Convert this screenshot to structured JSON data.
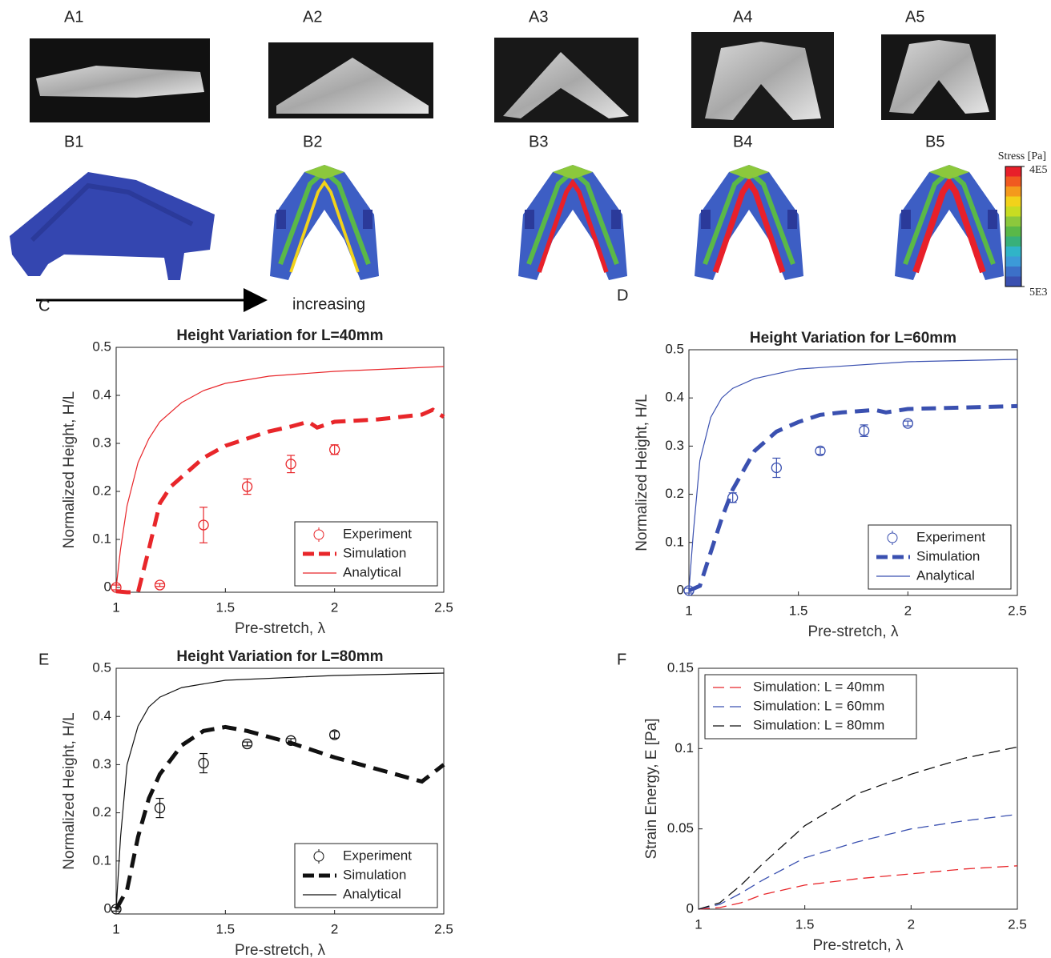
{
  "figure": {
    "photo_labels": [
      "A1",
      "A2",
      "A3",
      "A4",
      "A5"
    ],
    "sim_labels": [
      "B1",
      "B2",
      "B3",
      "B4",
      "B5"
    ],
    "arrow_label": "increasing",
    "colorbar": {
      "title": "Stress [Pa]",
      "ticks": [
        {
          "value": 5000,
          "label": "5E3"
        },
        {
          "value": 400000,
          "label": "4E5"
        }
      ],
      "colors": [
        "#e8202a",
        "#f05a20",
        "#f49a1c",
        "#f2d21a",
        "#c8dc22",
        "#8cc83c",
        "#5ab848",
        "#38b07a",
        "#30b4c8",
        "#3c9ad8",
        "#3c70c8",
        "#3a50b0"
      ]
    }
  },
  "chart_data": [
    {
      "type": "line",
      "panel": "C",
      "title": "Height Variation for L=40mm",
      "xlabel": "Pre-stretch, λ",
      "ylabel": "Normalized Height, H/L",
      "xlim": [
        1,
        2.5
      ],
      "ylim": [
        -0.01,
        0.5
      ],
      "xticks": [
        1,
        1.5,
        2,
        2.5
      ],
      "yticks": [
        0,
        0.1,
        0.2,
        0.3,
        0.4,
        0.5
      ],
      "legend": "lower right",
      "series": [
        {
          "name": "Experiment",
          "color": "#e8262a",
          "style": "errorbar",
          "x": [
            1,
            1.2,
            1.4,
            1.6,
            1.8,
            2
          ],
          "values": [
            0,
            0.005,
            0.13,
            0.21,
            0.257,
            0.287
          ],
          "errors": [
            0.005,
            0.003,
            0.037,
            0.016,
            0.018,
            0.01
          ]
        },
        {
          "name": "Simulation",
          "color": "#e8262a",
          "style": "dashed",
          "x": [
            1,
            1.05,
            1.1,
            1.15,
            1.2,
            1.25,
            1.3,
            1.4,
            1.5,
            1.6,
            1.7,
            1.8,
            1.88,
            1.92,
            2,
            2.2,
            2.4,
            2.45,
            2.5
          ],
          "values": [
            -0.008,
            -0.01,
            -0.01,
            0.08,
            0.175,
            0.21,
            0.23,
            0.27,
            0.295,
            0.31,
            0.325,
            0.335,
            0.345,
            0.333,
            0.345,
            0.35,
            0.36,
            0.37,
            0.355
          ]
        },
        {
          "name": "Analytical",
          "color": "#e8262a",
          "style": "solid",
          "x": [
            1,
            1.02,
            1.05,
            1.1,
            1.15,
            1.2,
            1.3,
            1.4,
            1.5,
            1.7,
            2,
            2.5
          ],
          "values": [
            0,
            0.08,
            0.17,
            0.26,
            0.31,
            0.345,
            0.385,
            0.41,
            0.425,
            0.44,
            0.45,
            0.46
          ]
        }
      ]
    },
    {
      "type": "line",
      "panel": "D",
      "title": "Height Variation for L=60mm",
      "xlabel": "Pre-stretch, λ",
      "ylabel": "Normalized Height, H/L",
      "xlim": [
        1,
        2.5
      ],
      "ylim": [
        -0.01,
        0.5
      ],
      "xticks": [
        1,
        1.5,
        2,
        2.5
      ],
      "yticks": [
        0,
        0.1,
        0.2,
        0.3,
        0.4,
        0.5
      ],
      "legend": "lower right",
      "series": [
        {
          "name": "Experiment",
          "color": "#3a50b0",
          "style": "errorbar",
          "x": [
            1,
            1.2,
            1.4,
            1.6,
            1.8,
            2
          ],
          "values": [
            0,
            0.193,
            0.255,
            0.29,
            0.332,
            0.347
          ],
          "errors": [
            0.005,
            0.01,
            0.02,
            0.007,
            0.012,
            0.005
          ]
        },
        {
          "name": "Simulation",
          "color": "#3a50b0",
          "style": "dashed",
          "x": [
            1,
            1.05,
            1.1,
            1.15,
            1.2,
            1.3,
            1.4,
            1.5,
            1.6,
            1.7,
            1.85,
            1.9,
            2,
            2.5
          ],
          "values": [
            0,
            0.01,
            0.08,
            0.15,
            0.21,
            0.29,
            0.33,
            0.35,
            0.365,
            0.37,
            0.375,
            0.37,
            0.377,
            0.383
          ]
        },
        {
          "name": "Analytical",
          "color": "#3a50b0",
          "style": "solid",
          "x": [
            1,
            1.02,
            1.05,
            1.1,
            1.15,
            1.2,
            1.3,
            1.5,
            2,
            2.5
          ],
          "values": [
            0,
            0.12,
            0.27,
            0.36,
            0.4,
            0.42,
            0.44,
            0.46,
            0.475,
            0.48
          ]
        }
      ]
    },
    {
      "type": "line",
      "panel": "E",
      "title": "Height Variation for L=80mm",
      "xlabel": "Pre-stretch, λ",
      "ylabel": "Normalized Height, H/L",
      "xlim": [
        1,
        2.5
      ],
      "ylim": [
        -0.01,
        0.5
      ],
      "xticks": [
        1,
        1.5,
        2,
        2.5
      ],
      "yticks": [
        0,
        0.1,
        0.2,
        0.3,
        0.4,
        0.5
      ],
      "legend": "lower right",
      "series": [
        {
          "name": "Experiment",
          "color": "#111111",
          "style": "errorbar",
          "x": [
            1,
            1.2,
            1.4,
            1.6,
            1.8,
            2
          ],
          "values": [
            0,
            0.21,
            0.303,
            0.343,
            0.35,
            0.362
          ],
          "errors": [
            0.004,
            0.02,
            0.02,
            0.004,
            0.004,
            0.007
          ]
        },
        {
          "name": "Simulation",
          "color": "#111111",
          "style": "dashed",
          "x": [
            1,
            1.05,
            1.1,
            1.15,
            1.2,
            1.3,
            1.4,
            1.5,
            1.6,
            1.8,
            2,
            2.2,
            2.4,
            2.5
          ],
          "values": [
            0,
            0.04,
            0.15,
            0.23,
            0.28,
            0.34,
            0.37,
            0.378,
            0.37,
            0.345,
            0.315,
            0.29,
            0.265,
            0.3
          ]
        },
        {
          "name": "Analytical",
          "color": "#111111",
          "style": "solid",
          "x": [
            1,
            1.02,
            1.05,
            1.1,
            1.15,
            1.2,
            1.3,
            1.5,
            2,
            2.5
          ],
          "values": [
            0,
            0.15,
            0.3,
            0.38,
            0.42,
            0.44,
            0.46,
            0.475,
            0.485,
            0.49
          ]
        }
      ]
    },
    {
      "type": "line",
      "panel": "F",
      "xlabel": "Pre-stretch,   λ",
      "ylabel": "Strain Energy, E [Pa]",
      "xlim": [
        1,
        2.5
      ],
      "ylim": [
        0,
        0.15
      ],
      "xticks": [
        1,
        1.5,
        2,
        2.5
      ],
      "yticks": [
        0,
        0.05,
        0.1,
        0.15
      ],
      "legend": "upper left",
      "series": [
        {
          "name": "Simulation: L = 40mm",
          "color": "#e8262a",
          "style": "thin-dashed",
          "x": [
            1,
            1.1,
            1.2,
            1.3,
            1.5,
            1.75,
            2,
            2.25,
            2.5
          ],
          "values": [
            0,
            0.001,
            0.004,
            0.009,
            0.015,
            0.019,
            0.022,
            0.025,
            0.027
          ]
        },
        {
          "name": "Simulation: L = 60mm",
          "color": "#3a50b0",
          "style": "thin-dashed",
          "x": [
            1,
            1.1,
            1.2,
            1.3,
            1.5,
            1.75,
            2,
            2.25,
            2.5
          ],
          "values": [
            0,
            0.003,
            0.01,
            0.018,
            0.032,
            0.042,
            0.05,
            0.055,
            0.059
          ]
        },
        {
          "name": "Simulation: L = 80mm",
          "color": "#111111",
          "style": "thin-dashed",
          "x": [
            1,
            1.1,
            1.2,
            1.3,
            1.5,
            1.75,
            2,
            2.25,
            2.5
          ],
          "values": [
            0,
            0.004,
            0.015,
            0.028,
            0.052,
            0.072,
            0.084,
            0.094,
            0.101
          ]
        }
      ]
    }
  ]
}
